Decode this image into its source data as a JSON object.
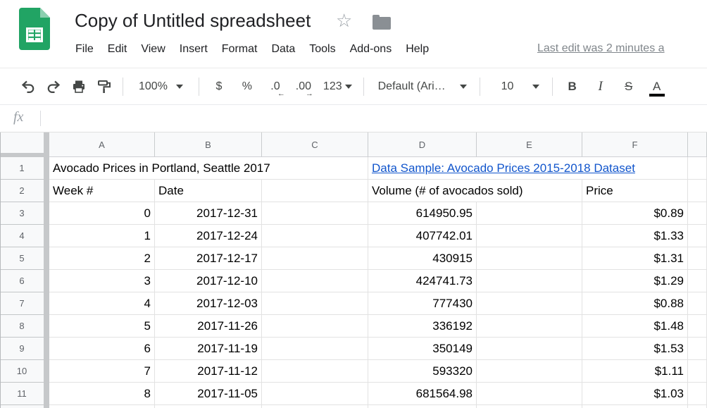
{
  "titlebar": {
    "doc_title": "Copy of Untitled spreadsheet",
    "star_glyph": "☆",
    "menu": [
      "File",
      "Edit",
      "View",
      "Insert",
      "Format",
      "Data",
      "Tools",
      "Add-ons",
      "Help"
    ],
    "last_edit": "Last edit was 2 minutes a"
  },
  "toolbar": {
    "zoom_value": "100%",
    "currency_label": "$",
    "percent_label": "%",
    "decrease_decimal_label": ".0",
    "decrease_decimal_arrow": "←",
    "increase_decimal_label": ".00",
    "increase_decimal_arrow": "→",
    "number_format_label": "123",
    "font_name": "Default (Ari…",
    "font_size": "10",
    "bold_label": "B",
    "italic_label": "I",
    "strikethrough_label": "S",
    "text_color_label": "A"
  },
  "formula_bar": {
    "fx_label": "fx",
    "value": ""
  },
  "sheet": {
    "column_headers": [
      "A",
      "B",
      "C",
      "D",
      "E",
      "F"
    ],
    "row_numbers": [
      "1",
      "2",
      "3",
      "4",
      "5",
      "6",
      "7",
      "8",
      "9",
      "10",
      "11"
    ],
    "title_cell": "Avocado Prices in Portland, Seattle 2017",
    "link_cell": "Data Sample: Avocado Prices 2015-2018 Dataset",
    "col_titles": {
      "week": "Week #",
      "date": "Date",
      "volume": "Volume (# of avocados sold)",
      "price": "Price"
    },
    "rows": [
      {
        "week": "0",
        "date": "2017-12-31",
        "volume": "614950.95",
        "price": "$0.89"
      },
      {
        "week": "1",
        "date": "2017-12-24",
        "volume": "407742.01",
        "price": "$1.33"
      },
      {
        "week": "2",
        "date": "2017-12-17",
        "volume": "430915",
        "price": "$1.31"
      },
      {
        "week": "3",
        "date": "2017-12-10",
        "volume": "424741.73",
        "price": "$1.29"
      },
      {
        "week": "4",
        "date": "2017-12-03",
        "volume": "777430",
        "price": "$0.88"
      },
      {
        "week": "5",
        "date": "2017-11-26",
        "volume": "336192",
        "price": "$1.48"
      },
      {
        "week": "6",
        "date": "2017-11-19",
        "volume": "350149",
        "price": "$1.53"
      },
      {
        "week": "7",
        "date": "2017-11-12",
        "volume": "593320",
        "price": "$1.11"
      },
      {
        "week": "8",
        "date": "2017-11-05",
        "volume": "681564.98",
        "price": "$1.03"
      }
    ],
    "colors": {
      "link": "#1155cc",
      "logo_green": "#21A464",
      "logo_fold": "#8BCFAF"
    }
  }
}
